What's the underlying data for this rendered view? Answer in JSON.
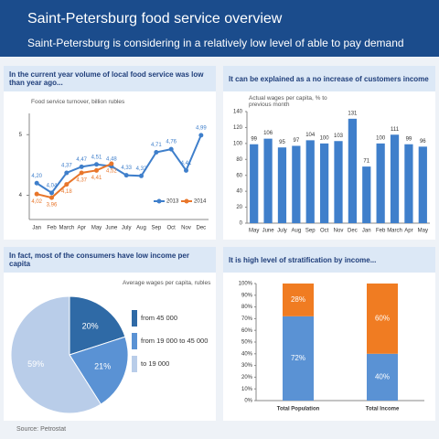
{
  "header": {
    "title": "Saint-Petersburg food service overview",
    "subtitle": "Saint-Petersburg is considering in a relatively low level of able to pay demand"
  },
  "chart_data": [
    {
      "type": "line",
      "title": "In the current year volume of local food service was low than year ago...",
      "subtitle": "Food service turnover, billion rubles",
      "categories": [
        "Jan",
        "Feb",
        "March",
        "Apr",
        "May",
        "June",
        "July",
        "Aug",
        "Sep",
        "Oct",
        "Nov",
        "Dec"
      ],
      "series": [
        {
          "name": "2013",
          "color": "#3f7fcb",
          "values": [
            4.2,
            4.04,
            4.37,
            4.47,
            4.51,
            4.48,
            4.33,
            4.32,
            4.71,
            4.76,
            4.41,
            4.99
          ],
          "value_labels": [
            "4,20",
            "4,04",
            "4,37",
            "4,47",
            "4,51",
            "4,48",
            "4,33",
            "4,32",
            "4,71",
            "4,76",
            "4,41",
            "4,99"
          ]
        },
        {
          "name": "2014",
          "color": "#e8762b",
          "values": [
            4.02,
            3.96,
            4.18,
            4.37,
            4.41,
            4.52,
            null,
            null,
            null,
            null,
            null,
            null
          ],
          "value_labels": [
            "4,02",
            "3,96",
            "4,18",
            "4,37",
            "4,41",
            "4,52",
            null,
            null,
            null,
            null,
            null,
            null
          ]
        }
      ],
      "ylim": [
        3.6,
        5.2
      ],
      "yticks": [
        4,
        5
      ],
      "legend": "lower right"
    },
    {
      "type": "bar",
      "title": "It can be explained as a no increase of customers income",
      "subtitle": "Actual wages per capita, % to previous month",
      "categories": [
        "May",
        "June",
        "July",
        "Aug",
        "Sep",
        "Oct",
        "Nov",
        "Dec",
        "Jan",
        "Feb",
        "March",
        "Apr",
        "May"
      ],
      "values": [
        99,
        106,
        95,
        97,
        104,
        100,
        103,
        131,
        71,
        100,
        111,
        99,
        96
      ],
      "color": "#3f7fcb",
      "ylim": [
        0,
        140
      ],
      "yticks": [
        0,
        20,
        40,
        60,
        80,
        100,
        120,
        140
      ]
    },
    {
      "type": "pie",
      "title": "In fact, most of the consumers have low income per capita",
      "subtitle": "Average wages per capita, rubles",
      "categories": [
        "from 45 000",
        "from 19 000 to 45 000",
        "to 19 000"
      ],
      "values": [
        20,
        21,
        59
      ],
      "value_labels": [
        "20%",
        "21%",
        "59%"
      ],
      "colors": [
        "#2f6aa6",
        "#5a92d4",
        "#b9cde9"
      ]
    },
    {
      "type": "stacked_bar",
      "title": "It is high level of stratification by income...",
      "categories": [
        "Total Population",
        "Total Income"
      ],
      "series": [
        {
          "color": "#5a92d4",
          "values": [
            72,
            40
          ],
          "value_labels": [
            "72%",
            "40%"
          ]
        },
        {
          "color": "#f07c22",
          "values": [
            28,
            60
          ],
          "value_labels": [
            "28%",
            "60%"
          ]
        }
      ],
      "ylim": [
        0,
        100
      ],
      "yticks": [
        {
          "value": 0,
          "label": "0%"
        },
        {
          "value": 10,
          "label": "10%"
        },
        {
          "value": 20,
          "label": "20%"
        },
        {
          "value": 30,
          "label": "30%"
        },
        {
          "value": 40,
          "label": "40%"
        },
        {
          "value": 50,
          "label": "50%"
        },
        {
          "value": 60,
          "label": "60%"
        },
        {
          "value": 70,
          "label": "70%"
        },
        {
          "value": 80,
          "label": "80%"
        },
        {
          "value": 90,
          "label": "90%"
        },
        {
          "value": 100,
          "label": "100%"
        }
      ]
    }
  ],
  "source": "Source: Petrostat"
}
